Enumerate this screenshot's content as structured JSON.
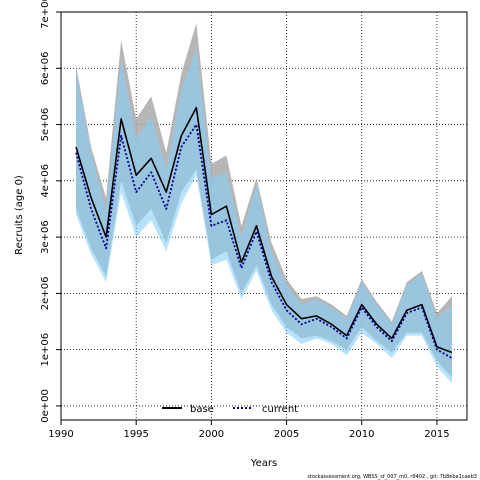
{
  "chart_data": {
    "type": "line",
    "xlabel": "Years",
    "ylabel": "Recruits (age 0)",
    "xlim": [
      1990,
      2017
    ],
    "ylim": [
      -250000,
      7000000
    ],
    "x_ticks": [
      1990,
      1995,
      2000,
      2005,
      2010,
      2015
    ],
    "x_tick_labels": [
      "1990",
      "1995",
      "2000",
      "2005",
      "2010",
      "2015"
    ],
    "y_ticks": [
      0,
      1000000,
      2000000,
      3000000,
      4000000,
      5000000,
      6000000,
      7000000
    ],
    "y_tick_labels": [
      "0e+00",
      "1e+06",
      "2e+06",
      "3e+06",
      "4e+06",
      "5e+06",
      "6e+06",
      "7e+06"
    ],
    "grid": true,
    "legend_position": "bottom-center",
    "caption": "stockassessment.org, WBSS_sf_007_m0, r9402 , git: 7b8eba1caeb3",
    "colors": {
      "base": "#000000",
      "current": "#00008b",
      "base_band": "#a9a9a9",
      "current_band": "#87cefa"
    },
    "x": [
      1991,
      1992,
      1993,
      1994,
      1995,
      1996,
      1997,
      1998,
      1999,
      2000,
      2001,
      2002,
      2003,
      2004,
      2005,
      2006,
      2007,
      2008,
      2009,
      2010,
      2011,
      2012,
      2013,
      2014,
      2015,
      2016
    ],
    "series": [
      {
        "name": "base",
        "style": "solid",
        "values": [
          4600000,
          3700000,
          3000000,
          5100000,
          4100000,
          4400000,
          3800000,
          4800000,
          5300000,
          3400000,
          3550000,
          2550000,
          3200000,
          2300000,
          1800000,
          1550000,
          1600000,
          1450000,
          1250000,
          1800000,
          1450000,
          1200000,
          1700000,
          1800000,
          1050000,
          950000
        ],
        "lower": [
          3500000,
          2800000,
          2300000,
          4000000,
          3200000,
          3500000,
          2900000,
          3800000,
          4200000,
          2600000,
          2750000,
          2000000,
          2500000,
          1800000,
          1400000,
          1200000,
          1250000,
          1150000,
          1000000,
          1400000,
          1150000,
          950000,
          1300000,
          1300000,
          800000,
          500000
        ],
        "upper": [
          6050000,
          4600000,
          3700000,
          6500000,
          5100000,
          5500000,
          4500000,
          5900000,
          6800000,
          4300000,
          4450000,
          3200000,
          4050000,
          2900000,
          2250000,
          1900000,
          1950000,
          1800000,
          1600000,
          2250000,
          1850000,
          1500000,
          2200000,
          2400000,
          1650000,
          1950000
        ]
      },
      {
        "name": "current",
        "style": "dotted",
        "values": [
          4500000,
          3500000,
          2800000,
          4800000,
          3800000,
          4150000,
          3500000,
          4600000,
          5000000,
          3200000,
          3300000,
          2450000,
          3100000,
          2200000,
          1700000,
          1450000,
          1550000,
          1400000,
          1200000,
          1750000,
          1400000,
          1150000,
          1650000,
          1750000,
          1000000,
          850000
        ],
        "lower": [
          3400000,
          2700000,
          2200000,
          3800000,
          3000000,
          3300000,
          2750000,
          3600000,
          4100000,
          2500000,
          2600000,
          1900000,
          2400000,
          1700000,
          1300000,
          1100000,
          1200000,
          1100000,
          900000,
          1300000,
          1100000,
          850000,
          1250000,
          1250000,
          700000,
          400000
        ],
        "upper": [
          5950000,
          4500000,
          3500000,
          6150000,
          4750000,
          5150000,
          4200000,
          5600000,
          6350000,
          4050000,
          4150000,
          3000000,
          3950000,
          2750000,
          2150000,
          1800000,
          1900000,
          1750000,
          1550000,
          2200000,
          1800000,
          1450000,
          2150000,
          2350000,
          1550000,
          1800000
        ]
      }
    ]
  }
}
